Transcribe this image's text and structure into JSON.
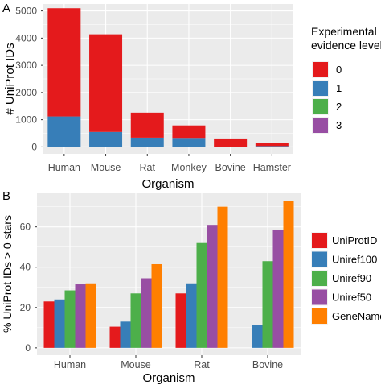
{
  "colors": {
    "panel_bg": "#ebebeb",
    "grid_major": "#ffffff",
    "axis_text": "#4d4d4d",
    "title_text": "#000000",
    "red": "#e41a1c",
    "blue": "#377eb8",
    "green": "#4daf4a",
    "purple": "#984ea3",
    "orange": "#ff7f00"
  },
  "chart_data": [
    {
      "panel_label": "A",
      "type": "bar",
      "stacked": true,
      "categories": [
        "Human",
        "Mouse",
        "Rat",
        "Monkey",
        "Bovine",
        "Hamster"
      ],
      "series": [
        {
          "name": "0",
          "color": "#e41a1c",
          "values": [
            3980,
            3590,
            920,
            460,
            300,
            110
          ]
        },
        {
          "name": "1",
          "color": "#377eb8",
          "values": [
            1120,
            550,
            340,
            330,
            10,
            30
          ]
        },
        {
          "name": "2",
          "color": "#4daf4a",
          "values": [
            0,
            0,
            0,
            0,
            0,
            0
          ]
        },
        {
          "name": "3",
          "color": "#984ea3",
          "values": [
            0,
            0,
            0,
            0,
            0,
            0
          ]
        }
      ],
      "xlabel": "Organism",
      "ylabel": "# UniProt IDs",
      "ylim": [
        -255,
        5255
      ],
      "yticks": [
        0,
        1000,
        2000,
        3000,
        4000,
        5000
      ],
      "ytick_labels": [
        "0",
        "1000",
        "2000",
        "3000",
        "4000",
        "5000"
      ],
      "legend": {
        "title_lines": [
          "Experimental",
          "evidence level"
        ],
        "placement": "right"
      },
      "grid": true
    },
    {
      "panel_label": "B",
      "type": "bar",
      "stacked": false,
      "categories": [
        "Human",
        "Mouse",
        "Rat",
        "Bovine"
      ],
      "series": [
        {
          "name": "UniProtID",
          "color": "#e41a1c",
          "values": [
            23,
            10.5,
            27,
            null
          ]
        },
        {
          "name": "Uniref100",
          "color": "#377eb8",
          "values": [
            24,
            13,
            32,
            11.5
          ]
        },
        {
          "name": "Uniref90",
          "color": "#4daf4a",
          "values": [
            28.5,
            27,
            52,
            43
          ]
        },
        {
          "name": "Uniref50",
          "color": "#984ea3",
          "values": [
            31.5,
            34.5,
            61,
            58.5
          ]
        },
        {
          "name": "GeneName",
          "color": "#ff7f00",
          "values": [
            32,
            41.5,
            70,
            73
          ]
        }
      ],
      "xlabel": "Organism",
      "ylabel": "% UniProt IDs > 0 stars",
      "ylim": [
        -3.65,
        76.65
      ],
      "yticks": [
        0,
        20,
        40,
        60
      ],
      "ytick_labels": [
        "0",
        "20",
        "40",
        "60"
      ],
      "legend": {
        "placement": "right"
      },
      "grid": true
    }
  ]
}
